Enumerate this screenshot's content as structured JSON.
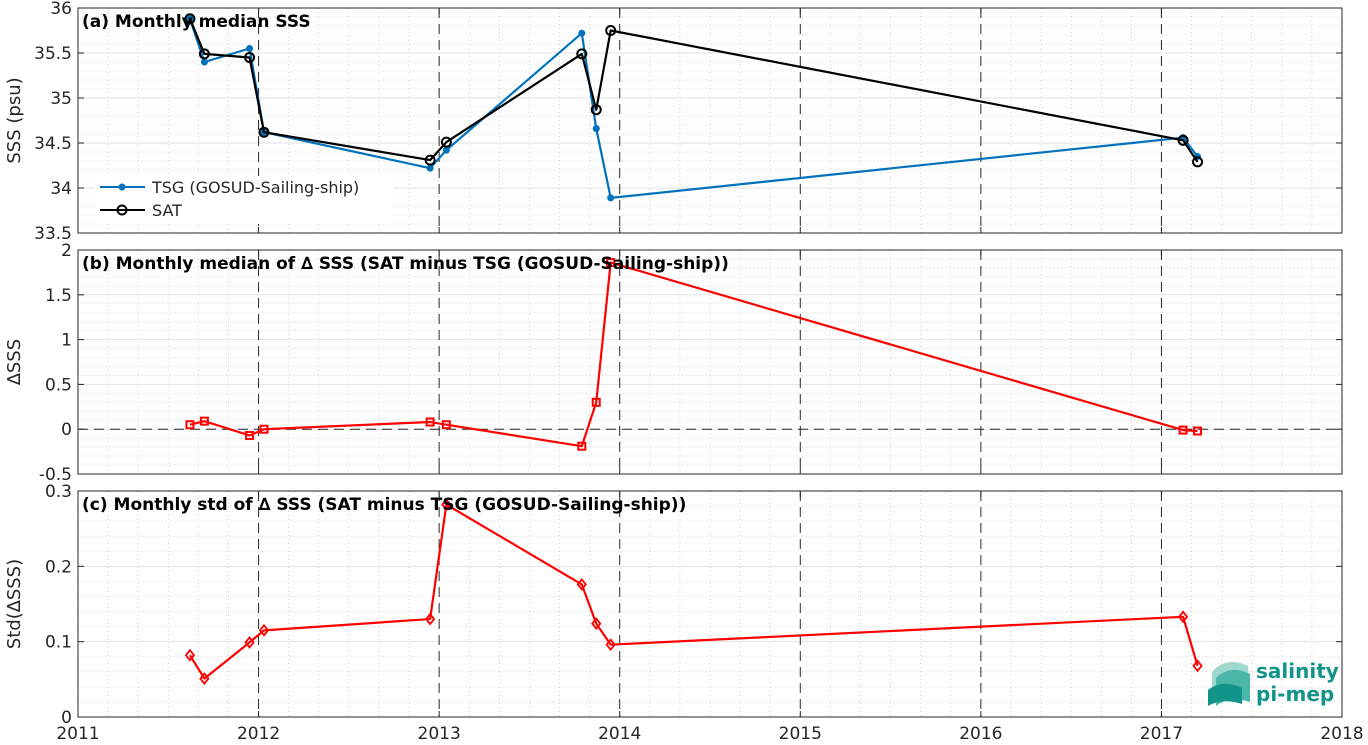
{
  "chart_data": [
    {
      "type": "line",
      "title": "(a) Monthly median SSS",
      "xlabel": "",
      "ylabel": "SSS (psu)",
      "xlim": [
        2011,
        2018
      ],
      "ylim": [
        33.5,
        36
      ],
      "grid": true,
      "legend_position": "left",
      "x_ticks": [
        "2011",
        "2012",
        "2013",
        "2014",
        "2015",
        "2016",
        "2017",
        "2018"
      ],
      "y_ticks": [
        "33.5",
        "34",
        "34.5",
        "35",
        "35.5",
        "36"
      ],
      "series": [
        {
          "name": "TSG (GOSUD-Sailing-ship)",
          "color": "#0072bd",
          "marker": "dot",
          "x": [
            2011.62,
            2011.7,
            2011.95,
            2012.03,
            2012.95,
            2013.04,
            2013.79,
            2013.87,
            2013.95,
            2017.12,
            2017.2
          ],
          "values": [
            35.88,
            35.4,
            35.55,
            34.62,
            34.22,
            34.42,
            35.72,
            34.66,
            33.89,
            34.56,
            34.35
          ]
        },
        {
          "name": "SAT",
          "color": "#000000",
          "marker": "circle",
          "x": [
            2011.62,
            2011.7,
            2011.95,
            2012.03,
            2012.95,
            2013.04,
            2013.79,
            2013.87,
            2013.95,
            2017.12,
            2017.2
          ],
          "values": [
            35.88,
            35.49,
            35.45,
            34.62,
            34.31,
            34.51,
            35.49,
            34.87,
            35.75,
            34.53,
            34.29
          ]
        }
      ]
    },
    {
      "type": "line",
      "title": "(b) Monthly median of ∆ SSS (SAT minus TSG (GOSUD-Sailing-ship))",
      "xlabel": "",
      "ylabel": "∆SSS",
      "xlim": [
        2011,
        2018
      ],
      "ylim": [
        -0.5,
        2
      ],
      "grid": true,
      "zero_line": true,
      "x_ticks": [
        "2011",
        "2012",
        "2013",
        "2014",
        "2015",
        "2016",
        "2017",
        "2018"
      ],
      "y_ticks": [
        "-0.5",
        "0",
        "0.5",
        "1",
        "1.5",
        "2"
      ],
      "series": [
        {
          "name": "",
          "color": "#ff0000",
          "marker": "square",
          "x": [
            2011.62,
            2011.7,
            2011.95,
            2012.03,
            2012.95,
            2013.04,
            2013.79,
            2013.87,
            2013.95,
            2017.12,
            2017.2
          ],
          "values": [
            0.05,
            0.09,
            -0.07,
            0.0,
            0.08,
            0.05,
            -0.19,
            0.3,
            1.86,
            -0.01,
            -0.02
          ]
        }
      ]
    },
    {
      "type": "line",
      "title": "(c) Monthly std of ∆ SSS (SAT minus TSG (GOSUD-Sailing-ship))",
      "xlabel": "",
      "ylabel": "Std(∆SSS)",
      "xlim": [
        2011,
        2018
      ],
      "ylim": [
        0,
        0.3
      ],
      "grid": true,
      "x_ticks": [
        "2011",
        "2012",
        "2013",
        "2014",
        "2015",
        "2016",
        "2017",
        "2018"
      ],
      "y_ticks": [
        "0",
        "0.1",
        "0.2",
        "0.3"
      ],
      "series": [
        {
          "name": "",
          "color": "#ff0000",
          "marker": "diamond",
          "x": [
            2011.62,
            2011.7,
            2011.95,
            2012.03,
            2012.95,
            2013.04,
            2013.79,
            2013.87,
            2013.95,
            2017.12,
            2017.2
          ],
          "values": [
            0.082,
            0.051,
            0.099,
            0.115,
            0.13,
            0.282,
            0.176,
            0.124,
            0.096,
            0.133,
            0.068
          ]
        }
      ]
    }
  ],
  "logo": {
    "line1": "salinity",
    "line2": "pi-mep"
  },
  "colors": {
    "tsg": "#0072bd",
    "sat": "#000000",
    "delta": "#ff0000",
    "logo": "#12948a"
  }
}
